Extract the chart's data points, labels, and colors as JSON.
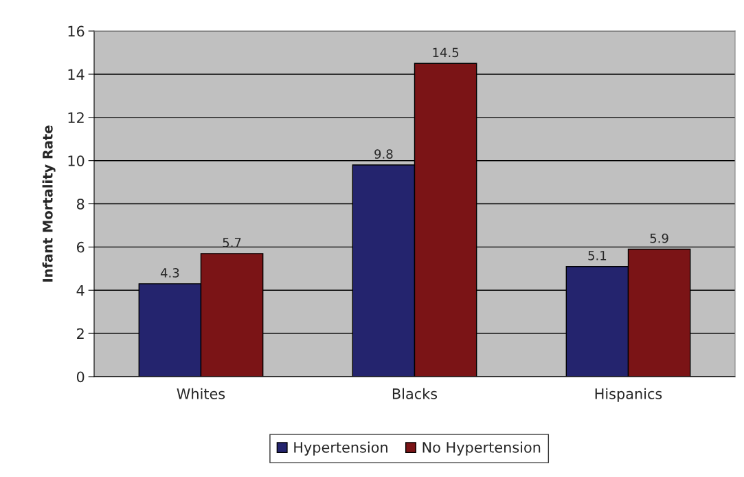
{
  "chart_data": {
    "type": "bar",
    "ylabel": "Infant Mortality Rate",
    "categories": [
      "Whites",
      "Blacks",
      "Hispanics"
    ],
    "series": [
      {
        "name": "Hypertension",
        "color": "#24246e",
        "values": [
          4.3,
          9.8,
          5.1
        ]
      },
      {
        "name": "No Hypertension",
        "color": "#7b1416",
        "values": [
          5.7,
          14.5,
          5.9
        ]
      }
    ],
    "ylim": [
      0,
      16
    ],
    "yticks": [
      0,
      2,
      4,
      6,
      8,
      10,
      12,
      14,
      16
    ],
    "grid": "y",
    "legend": "bottom",
    "data_labels": true
  }
}
